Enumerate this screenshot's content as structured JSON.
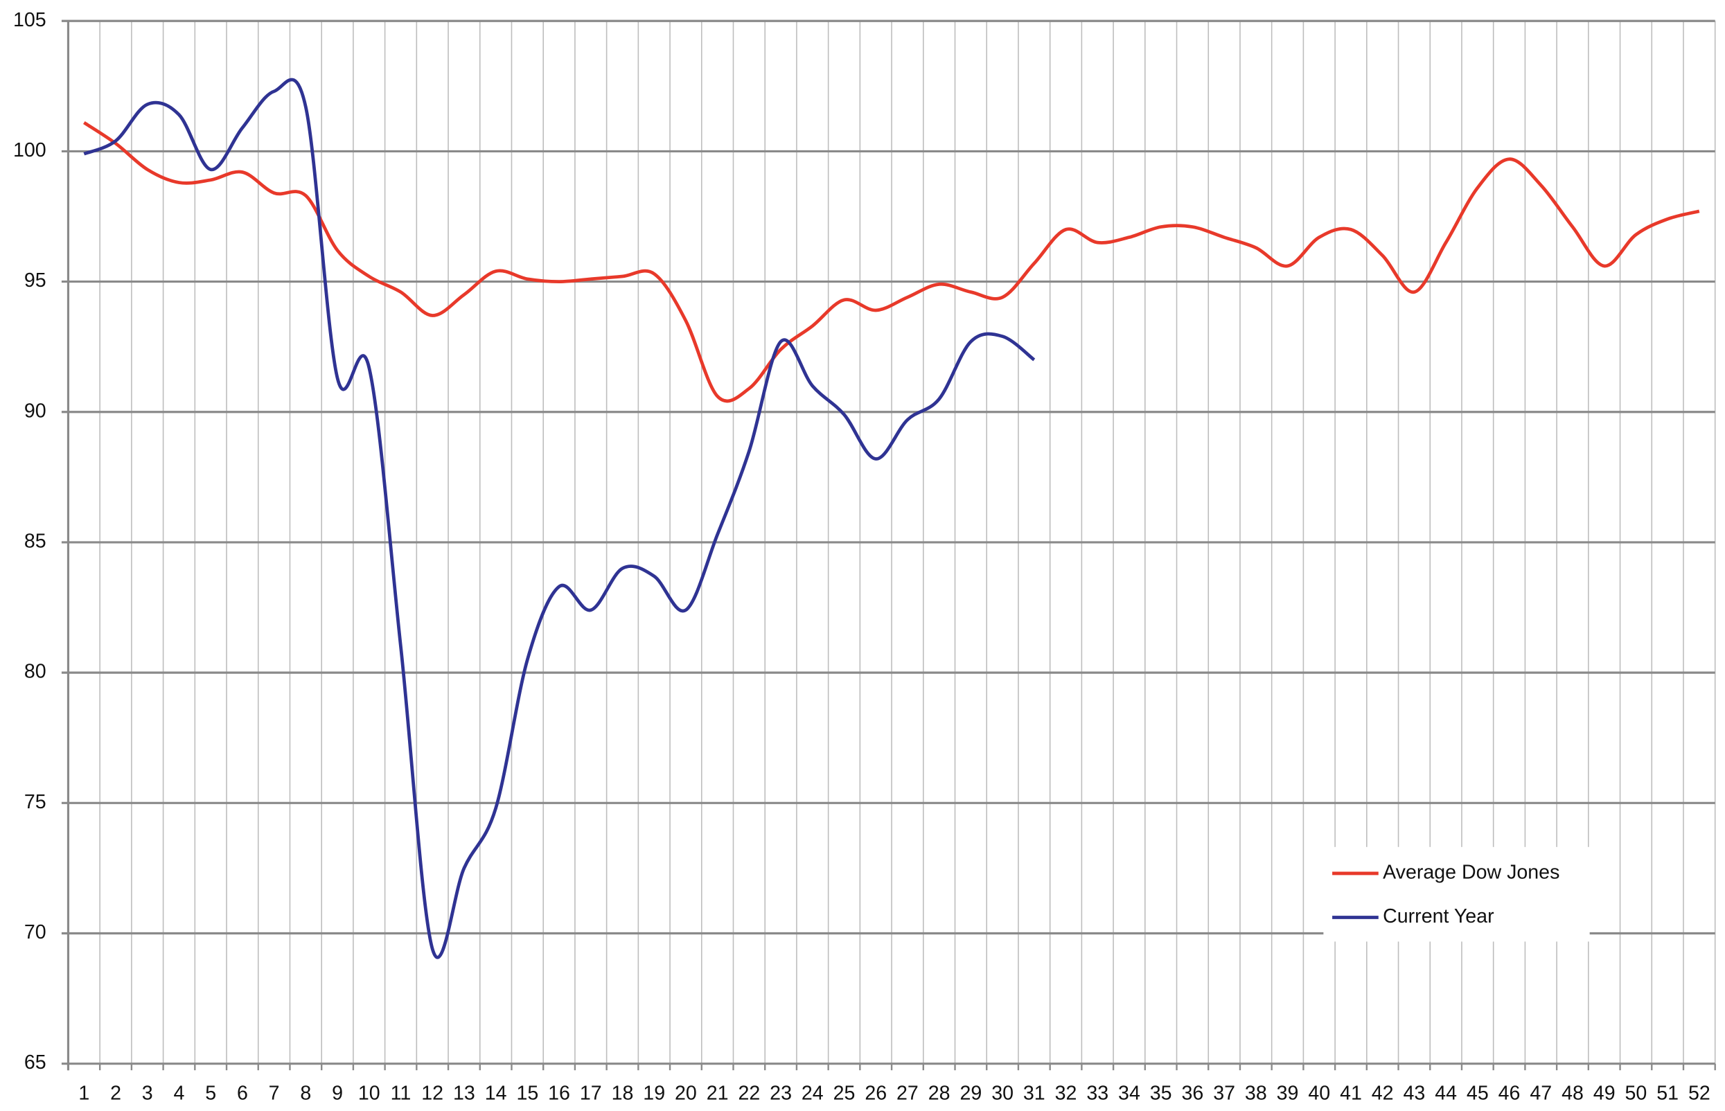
{
  "chart_data": {
    "type": "line",
    "categories": [
      "1",
      "2",
      "3",
      "4",
      "5",
      "6",
      "7",
      "8",
      "9",
      "10",
      "11",
      "12",
      "13",
      "14",
      "15",
      "16",
      "17",
      "18",
      "19",
      "20",
      "21",
      "22",
      "23",
      "24",
      "25",
      "26",
      "27",
      "28",
      "29",
      "30",
      "31",
      "32",
      "33",
      "34",
      "35",
      "36",
      "37",
      "38",
      "39",
      "40",
      "41",
      "42",
      "43",
      "44",
      "45",
      "46",
      "47",
      "48",
      "49",
      "50",
      "51",
      "52"
    ],
    "series": [
      {
        "name": "Average Dow Jones",
        "color": "#e8392a",
        "values": [
          101.1,
          100.3,
          99.3,
          98.8,
          98.9,
          99.2,
          98.4,
          98.3,
          96.2,
          95.2,
          94.6,
          93.7,
          94.5,
          95.4,
          95.1,
          95.0,
          95.1,
          95.2,
          95.3,
          93.5,
          90.6,
          90.9,
          92.4,
          93.3,
          94.3,
          93.9,
          94.4,
          94.9,
          94.6,
          94.4,
          95.7,
          97.0,
          96.5,
          96.7,
          97.1,
          97.1,
          96.7,
          96.3,
          95.6,
          96.7,
          97.0,
          96.0,
          94.6,
          96.5,
          98.6,
          99.7,
          98.7,
          97.1,
          95.6,
          96.8,
          97.4,
          97.7
        ]
      },
      {
        "name": "Current Year",
        "color": "#2f3393",
        "values": [
          99.9,
          100.4,
          101.8,
          101.4,
          99.3,
          100.9,
          102.3,
          101.7,
          91.3,
          91.7,
          81.0,
          69.4,
          72.5,
          74.8,
          80.5,
          83.3,
          82.4,
          84.0,
          83.7,
          82.4,
          85.3,
          88.5,
          92.7,
          91.0,
          89.9,
          88.2,
          89.7,
          90.5,
          92.7,
          92.9,
          92.0,
          null,
          null,
          null,
          null,
          null,
          null,
          null,
          null,
          null,
          null,
          null,
          null,
          null,
          null,
          null,
          null,
          null,
          null,
          null,
          null,
          null
        ]
      }
    ],
    "ylim": [
      65,
      105
    ],
    "yticks": [
      65,
      70,
      75,
      80,
      85,
      90,
      95,
      100,
      105
    ],
    "grid": true,
    "legend": "lower right"
  }
}
